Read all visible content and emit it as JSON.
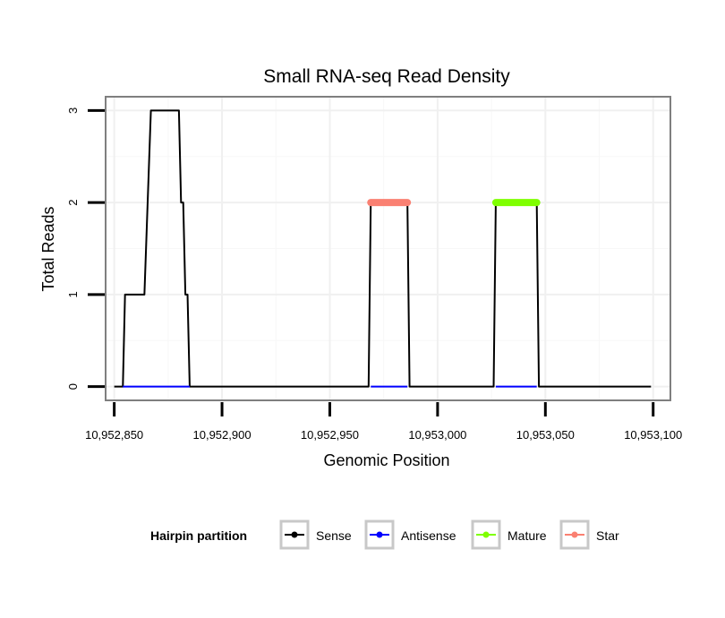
{
  "chart_data": {
    "type": "line",
    "title": "Small RNA-seq Read Density",
    "xlabel": "Genomic Position",
    "ylabel": "Total Reads",
    "xlim": [
      10952846,
      10953108
    ],
    "ylim": [
      -0.15,
      3.15
    ],
    "x_ticks": [
      10952850,
      10952900,
      10952950,
      10953000,
      10953050,
      10953100
    ],
    "x_tick_labels": [
      "10,952,850",
      "10,952,900",
      "10,952,950",
      "10,953,000",
      "10,953,050",
      "10,953,100"
    ],
    "y_ticks": [
      0,
      1,
      2,
      3
    ],
    "y_tick_labels": [
      "0",
      "1",
      "2",
      "3"
    ],
    "grid": true,
    "series": [
      {
        "name": "Sense",
        "color": "#000000",
        "x": [
          10952850,
          10952854,
          10952855,
          10952864,
          10952867,
          10952880,
          10952881,
          10952882,
          10952883,
          10952884,
          10952885,
          10952886,
          10952968,
          10952969,
          10952986,
          10952987,
          10953026,
          10953027,
          10953046,
          10953047,
          10953099
        ],
        "y": [
          0,
          0,
          1,
          1,
          3,
          3,
          2,
          2,
          1,
          1,
          0,
          0,
          0,
          2,
          2,
          0,
          0,
          2,
          2,
          0,
          0
        ]
      },
      {
        "name": "Antisense",
        "color": "#0000ff",
        "segments": [
          [
            10952854,
            10952885
          ],
          [
            10952969,
            10952986
          ],
          [
            10953027,
            10953046
          ]
        ],
        "y": 0
      },
      {
        "name": "Mature",
        "color": "#7fff00",
        "x": [
          10953027,
          10953046
        ],
        "y": [
          2,
          2
        ]
      },
      {
        "name": "Star",
        "color": "#fa8072",
        "x": [
          10952969,
          10952986
        ],
        "y": [
          2,
          2
        ]
      }
    ],
    "legend": {
      "title": "Hairpin partition",
      "position": "bottom",
      "entries": [
        {
          "label": "Sense",
          "color": "#000000"
        },
        {
          "label": "Antisense",
          "color": "#0000ff"
        },
        {
          "label": "Mature",
          "color": "#7fff00"
        },
        {
          "label": "Star",
          "color": "#fa8072"
        }
      ]
    }
  }
}
